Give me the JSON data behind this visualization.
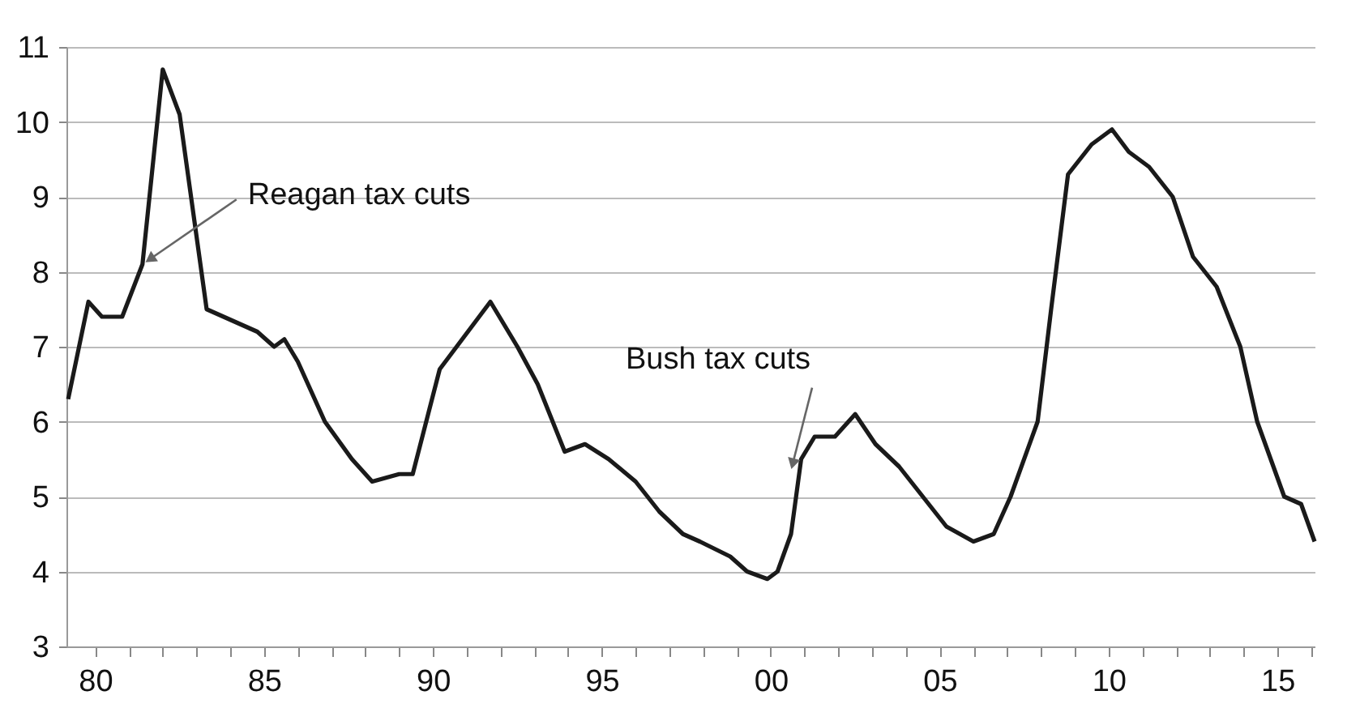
{
  "chart_data": {
    "type": "line",
    "x": [
      1979.2,
      1979.8,
      1980.2,
      1980.8,
      1981.4,
      1982.0,
      1982.5,
      1983.3,
      1984.3,
      1984.8,
      1985.3,
      1985.6,
      1986.0,
      1986.8,
      1987.6,
      1988.2,
      1989.0,
      1989.4,
      1990.2,
      1990.7,
      1991.7,
      1992.5,
      1993.1,
      1993.9,
      1994.5,
      1995.2,
      1996.0,
      1996.7,
      1997.4,
      1997.9,
      1998.8,
      1999.3,
      1999.9,
      2000.2,
      2000.6,
      2000.9,
      2001.3,
      2001.9,
      2002.5,
      2003.1,
      2003.8,
      2004.5,
      2005.2,
      2006.0,
      2006.6,
      2007.1,
      2007.9,
      2008.3,
      2008.8,
      2009.5,
      2010.1,
      2010.6,
      2011.2,
      2011.9,
      2012.5,
      2013.2,
      2013.9,
      2014.4,
      2014.8,
      2015.2,
      2015.7,
      2016.1
    ],
    "series": [
      {
        "color": "#1a1a1a",
        "values": [
          6.3,
          7.6,
          7.4,
          7.4,
          8.1,
          10.7,
          10.1,
          7.5,
          7.3,
          7.2,
          7.0,
          7.1,
          6.8,
          6.0,
          5.5,
          5.2,
          5.3,
          5.3,
          6.7,
          7.0,
          7.6,
          7.0,
          6.5,
          5.6,
          5.7,
          5.5,
          5.2,
          4.8,
          4.5,
          4.4,
          4.2,
          4.0,
          3.9,
          4.0,
          4.5,
          5.5,
          5.8,
          5.8,
          6.1,
          5.7,
          5.4,
          5.0,
          4.6,
          4.4,
          4.5,
          5.0,
          6.0,
          7.5,
          9.3,
          9.7,
          9.9,
          9.6,
          9.4,
          9.0,
          8.2,
          7.8,
          7.0,
          6.0,
          5.5,
          5.0,
          4.9,
          4.4
        ]
      }
    ],
    "xlim": [
      1979.15,
      2016.1
    ],
    "xticks": [
      {
        "value": 1980,
        "label": "80"
      },
      {
        "value": 1981,
        "label": null
      },
      {
        "value": 1982,
        "label": null
      },
      {
        "value": 1983,
        "label": null
      },
      {
        "value": 1984,
        "label": null
      },
      {
        "value": 1985,
        "label": "85"
      },
      {
        "value": 1986,
        "label": null
      },
      {
        "value": 1987,
        "label": null
      },
      {
        "value": 1988,
        "label": null
      },
      {
        "value": 1989,
        "label": null
      },
      {
        "value": 1990,
        "label": "90"
      },
      {
        "value": 1991,
        "label": null
      },
      {
        "value": 1992,
        "label": null
      },
      {
        "value": 1993,
        "label": null
      },
      {
        "value": 1994,
        "label": null
      },
      {
        "value": 1995,
        "label": "95"
      },
      {
        "value": 1996,
        "label": null
      },
      {
        "value": 1997,
        "label": null
      },
      {
        "value": 1998,
        "label": null
      },
      {
        "value": 1999,
        "label": null
      },
      {
        "value": 2000,
        "label": "00"
      },
      {
        "value": 2001,
        "label": null
      },
      {
        "value": 2002,
        "label": null
      },
      {
        "value": 2003,
        "label": null
      },
      {
        "value": 2004,
        "label": null
      },
      {
        "value": 2005,
        "label": "05"
      },
      {
        "value": 2006,
        "label": null
      },
      {
        "value": 2007,
        "label": null
      },
      {
        "value": 2008,
        "label": null
      },
      {
        "value": 2009,
        "label": null
      },
      {
        "value": 2010,
        "label": "10"
      },
      {
        "value": 2011,
        "label": null
      },
      {
        "value": 2012,
        "label": null
      },
      {
        "value": 2013,
        "label": null
      },
      {
        "value": 2014,
        "label": null
      },
      {
        "value": 2015,
        "label": "15"
      },
      {
        "value": 2016,
        "label": null
      }
    ],
    "ylim": [
      3,
      11
    ],
    "yticks": [
      3,
      4,
      5,
      6,
      7,
      8,
      9,
      10,
      11
    ],
    "grid": "y",
    "annotations": [
      {
        "text": "Reagan tax cuts",
        "x": 1981.4,
        "y": 8.1
      },
      {
        "text": "Bush tax cuts",
        "x": 2000.6,
        "y": 5.35
      }
    ]
  }
}
